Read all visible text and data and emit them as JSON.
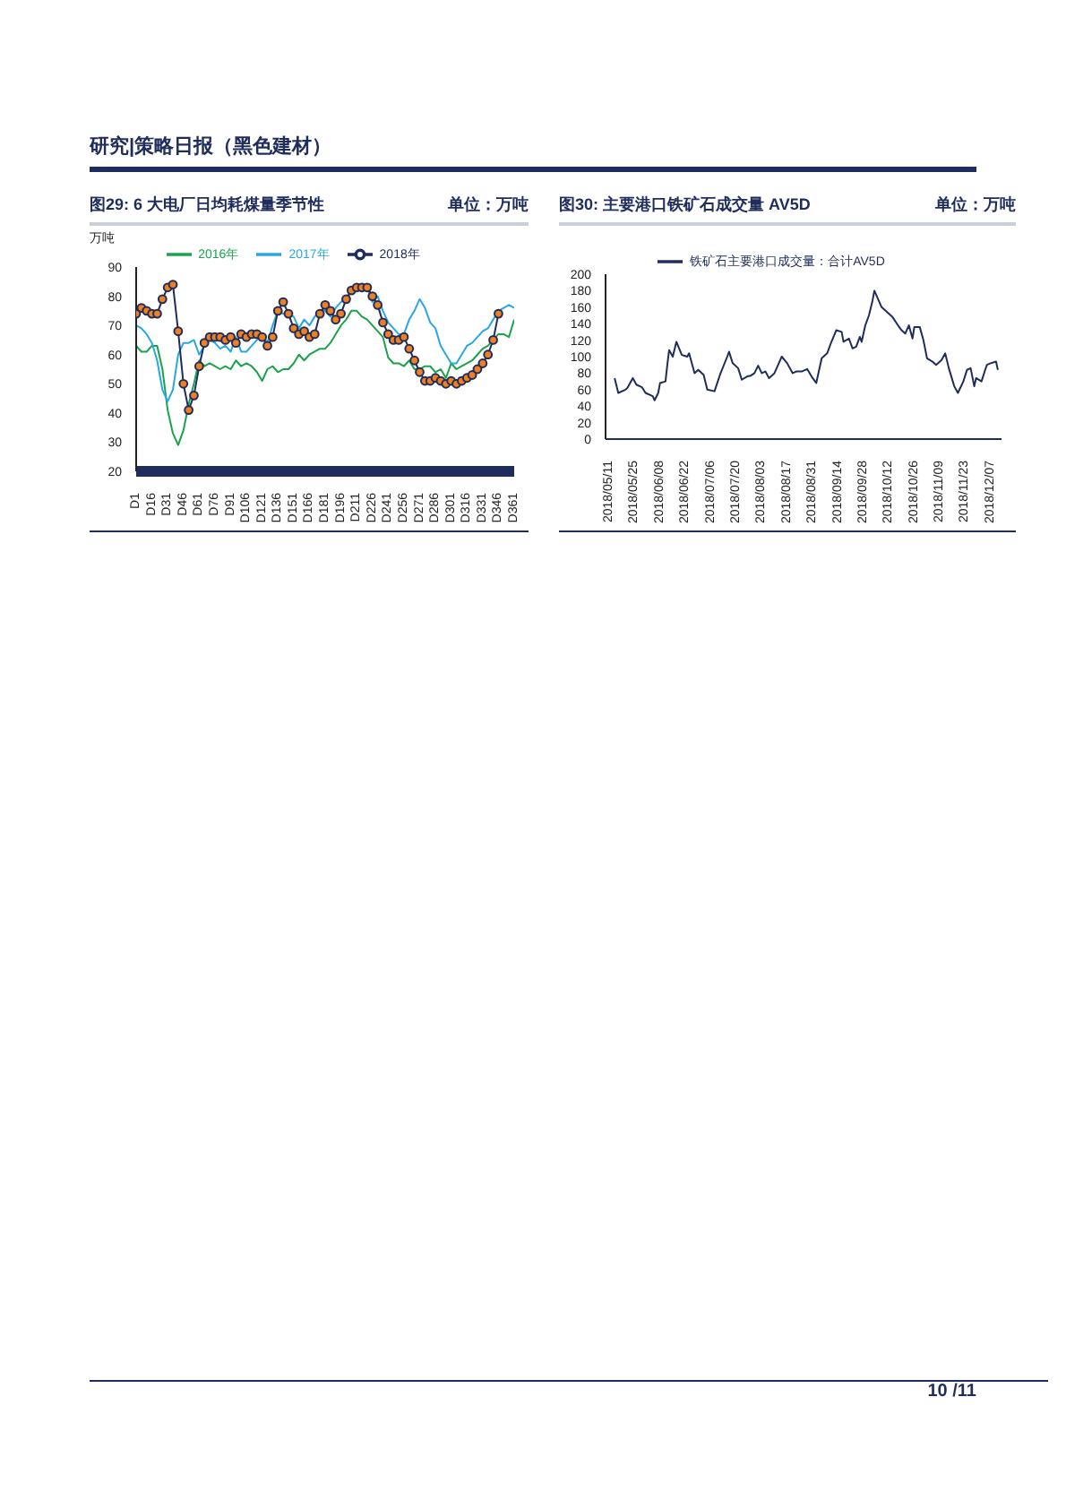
{
  "chart_data": [
    {
      "type": "line",
      "title": "图29: 6 大电厂日均耗煤量季节性",
      "subtitle": "单位：万吨",
      "ylabel": "万吨",
      "annotations": [
        "研究|策略日报（黑色建材）"
      ],
      "categories": [
        "D1",
        null,
        null,
        "D16",
        null,
        null,
        "D31",
        null,
        null,
        "D46",
        null,
        null,
        "D61",
        null,
        null,
        "D76",
        null,
        null,
        "D91",
        null,
        null,
        "D106",
        null,
        null,
        "D121",
        null,
        null,
        "D136",
        null,
        null,
        "D151",
        null,
        null,
        "D166",
        null,
        null,
        "D181",
        null,
        null,
        "D196",
        null,
        null,
        "D211",
        null,
        null,
        "D226",
        null,
        null,
        "D241",
        null,
        null,
        "D256",
        null,
        null,
        "D271",
        null,
        null,
        "D286",
        null,
        null,
        "D301",
        null,
        null,
        "D316",
        null,
        null,
        "D331",
        null,
        null,
        "D346",
        null,
        null,
        "D361"
      ],
      "ylim": [
        20,
        90
      ],
      "yticks": [
        20,
        30,
        40,
        50,
        60,
        70,
        80,
        90
      ],
      "grid": false,
      "legend": "top",
      "series": [
        {
          "name": "2016年",
          "color": "#1aa34a",
          "marker": "none",
          "values": [
            63,
            61,
            61,
            63,
            63,
            55,
            41,
            33,
            29,
            34,
            43,
            50,
            58,
            56,
            57,
            56,
            55,
            56,
            55,
            58,
            56,
            57,
            56,
            54,
            51,
            55,
            56,
            54,
            55,
            55,
            57,
            60,
            58,
            60,
            61,
            62,
            62,
            64,
            67,
            70,
            72,
            75,
            75,
            73,
            72,
            70,
            68,
            66,
            59,
            57,
            57,
            56,
            58,
            55,
            55,
            56,
            56,
            54,
            55,
            52,
            57,
            55,
            56,
            57,
            58,
            60,
            62,
            63,
            65,
            67,
            67,
            66,
            72
          ]
        },
        {
          "name": "2017年",
          "color": "#29a8e0",
          "marker": "none",
          "values": [
            70,
            69,
            67,
            64,
            58,
            48,
            44,
            48,
            60,
            64,
            64,
            65,
            60,
            63,
            65,
            64,
            62,
            63,
            61,
            66,
            61,
            61,
            63,
            65,
            67,
            64,
            70,
            75,
            74,
            74,
            73,
            69,
            72,
            70,
            73,
            75,
            75,
            73,
            76,
            78,
            80,
            81,
            83,
            84,
            83,
            78,
            80,
            75,
            71,
            69,
            67,
            67,
            72,
            75,
            79,
            76,
            71,
            69,
            63,
            60,
            57,
            57,
            60,
            63,
            64,
            66,
            68,
            69,
            72,
            75,
            76,
            77,
            76
          ]
        },
        {
          "name": "2018年",
          "color": "#1f2d5c",
          "marker": "circle",
          "values": [
            74,
            76,
            75,
            74,
            74,
            79,
            83,
            84,
            68,
            50,
            41,
            46,
            56,
            64,
            66,
            66,
            66,
            65,
            66,
            64,
            67,
            66,
            67,
            67,
            66,
            63,
            66,
            75,
            78,
            74,
            69,
            67,
            68,
            66,
            67,
            74,
            77,
            75,
            72,
            74,
            79,
            82,
            83,
            83,
            83,
            80,
            77,
            71,
            67,
            65,
            65,
            66,
            62,
            58,
            54,
            51,
            51,
            52,
            51,
            50,
            51,
            50,
            51,
            52,
            53,
            55,
            57,
            60,
            65,
            74,
            null,
            null,
            null
          ]
        }
      ]
    },
    {
      "type": "line",
      "title": "图30: 主要港口铁矿石成交量 AV5D",
      "subtitle": "单位：万吨",
      "annotations": [
        "10 /11"
      ],
      "xlim": [
        "2018-05-09",
        "2018-12-13"
      ],
      "xticks": [
        {
          "value": "2018-05-11",
          "label": "2018/05/11"
        },
        {
          "value": "2018-05-25",
          "label": "2018/05/25"
        },
        {
          "value": "2018-06-08",
          "label": "2018/06/08"
        },
        {
          "value": "2018-06-22",
          "label": "2018/06/22"
        },
        {
          "value": "2018-07-06",
          "label": "2018/07/06"
        },
        {
          "value": "2018-07-20",
          "label": "2018/07/20"
        },
        {
          "value": "2018-08-03",
          "label": "2018/08/03"
        },
        {
          "value": "2018-08-17",
          "label": "2018/08/17"
        },
        {
          "value": "2018-08-31",
          "label": "2018/08/31"
        },
        {
          "value": "2018-09-14",
          "label": "2018/09/14"
        },
        {
          "value": "2018-09-28",
          "label": "2018/09/28"
        },
        {
          "value": "2018-10-12",
          "label": "2018/10/12"
        },
        {
          "value": "2018-10-26",
          "label": "2018/10/26"
        },
        {
          "value": "2018-11-09",
          "label": "2018/11/09"
        },
        {
          "value": "2018-11-23",
          "label": "2018/11/23"
        },
        {
          "value": "2018-12-07",
          "label": "2018/12/07"
        }
      ],
      "ylim": [
        0,
        200
      ],
      "yticks": [
        0,
        20,
        40,
        60,
        80,
        100,
        120,
        140,
        160,
        180,
        200
      ],
      "grid": false,
      "legend": "top",
      "series": [
        {
          "name": "铁矿石主要港口成交量：合计AV5D",
          "color": "#1f2d5c",
          "marker": "none",
          "x": [
            "2018-05-14",
            "2018-05-16",
            "2018-05-20",
            "2018-05-21",
            "2018-05-24",
            "2018-05-26",
            "2018-05-29",
            "2018-05-31",
            "2018-06-04",
            "2018-06-05",
            "2018-06-07",
            "2018-06-08",
            "2018-06-11",
            "2018-06-12",
            "2018-06-13",
            "2018-06-15",
            "2018-06-17",
            "2018-06-20",
            "2018-06-23",
            "2018-06-24",
            "2018-06-27",
            "2018-06-29",
            "2018-07-02",
            "2018-07-04",
            "2018-07-08",
            "2018-07-11",
            "2018-07-15",
            "2018-07-16",
            "2018-07-18",
            "2018-07-21",
            "2018-07-23",
            "2018-07-26",
            "2018-07-28",
            "2018-07-30",
            "2018-08-01",
            "2018-08-03",
            "2018-08-05",
            "2018-08-07",
            "2018-08-10",
            "2018-08-13",
            "2018-08-14",
            "2018-08-17",
            "2018-08-20",
            "2018-08-22",
            "2018-08-25",
            "2018-08-28",
            "2018-08-31",
            "2018-09-02",
            "2018-09-05",
            "2018-09-08",
            "2018-09-10",
            "2018-09-13",
            "2018-09-16",
            "2018-09-17",
            "2018-09-20",
            "2018-09-22",
            "2018-09-24",
            "2018-09-26",
            "2018-09-27",
            "2018-09-29",
            "2018-10-01",
            "2018-10-03",
            "2018-10-04",
            "2018-10-06",
            "2018-10-08",
            "2018-10-11",
            "2018-10-14",
            "2018-10-17",
            "2018-10-19",
            "2018-10-21",
            "2018-10-23",
            "2018-10-25",
            "2018-10-26",
            "2018-10-29",
            "2018-10-31",
            "2018-11-02",
            "2018-11-05",
            "2018-11-07",
            "2018-11-10",
            "2018-11-12",
            "2018-11-14",
            "2018-11-17",
            "2018-11-19",
            "2018-11-22",
            "2018-11-24",
            "2018-11-26",
            "2018-11-28",
            "2018-11-29",
            "2018-12-02",
            "2018-12-04",
            "2018-12-05",
            "2018-12-07",
            "2018-12-10",
            "2018-12-11"
          ],
          "values": [
            74,
            56,
            60,
            62,
            74,
            66,
            63,
            56,
            52,
            47,
            56,
            68,
            70,
            90,
            108,
            100,
            118,
            102,
            100,
            104,
            80,
            84,
            78,
            60,
            58,
            78,
            100,
            106,
            92,
            86,
            72,
            76,
            77,
            80,
            89,
            80,
            82,
            74,
            80,
            95,
            100,
            92,
            80,
            82,
            82,
            85,
            74,
            68,
            98,
            104,
            116,
            132,
            130,
            118,
            122,
            110,
            112,
            124,
            118,
            138,
            150,
            168,
            180,
            170,
            160,
            154,
            148,
            138,
            132,
            128,
            138,
            122,
            136,
            136,
            120,
            98,
            94,
            90,
            96,
            104,
            86,
            64,
            56,
            70,
            84,
            86,
            64,
            74,
            70,
            84,
            90,
            92,
            94,
            84
          ]
        }
      ]
    }
  ]
}
